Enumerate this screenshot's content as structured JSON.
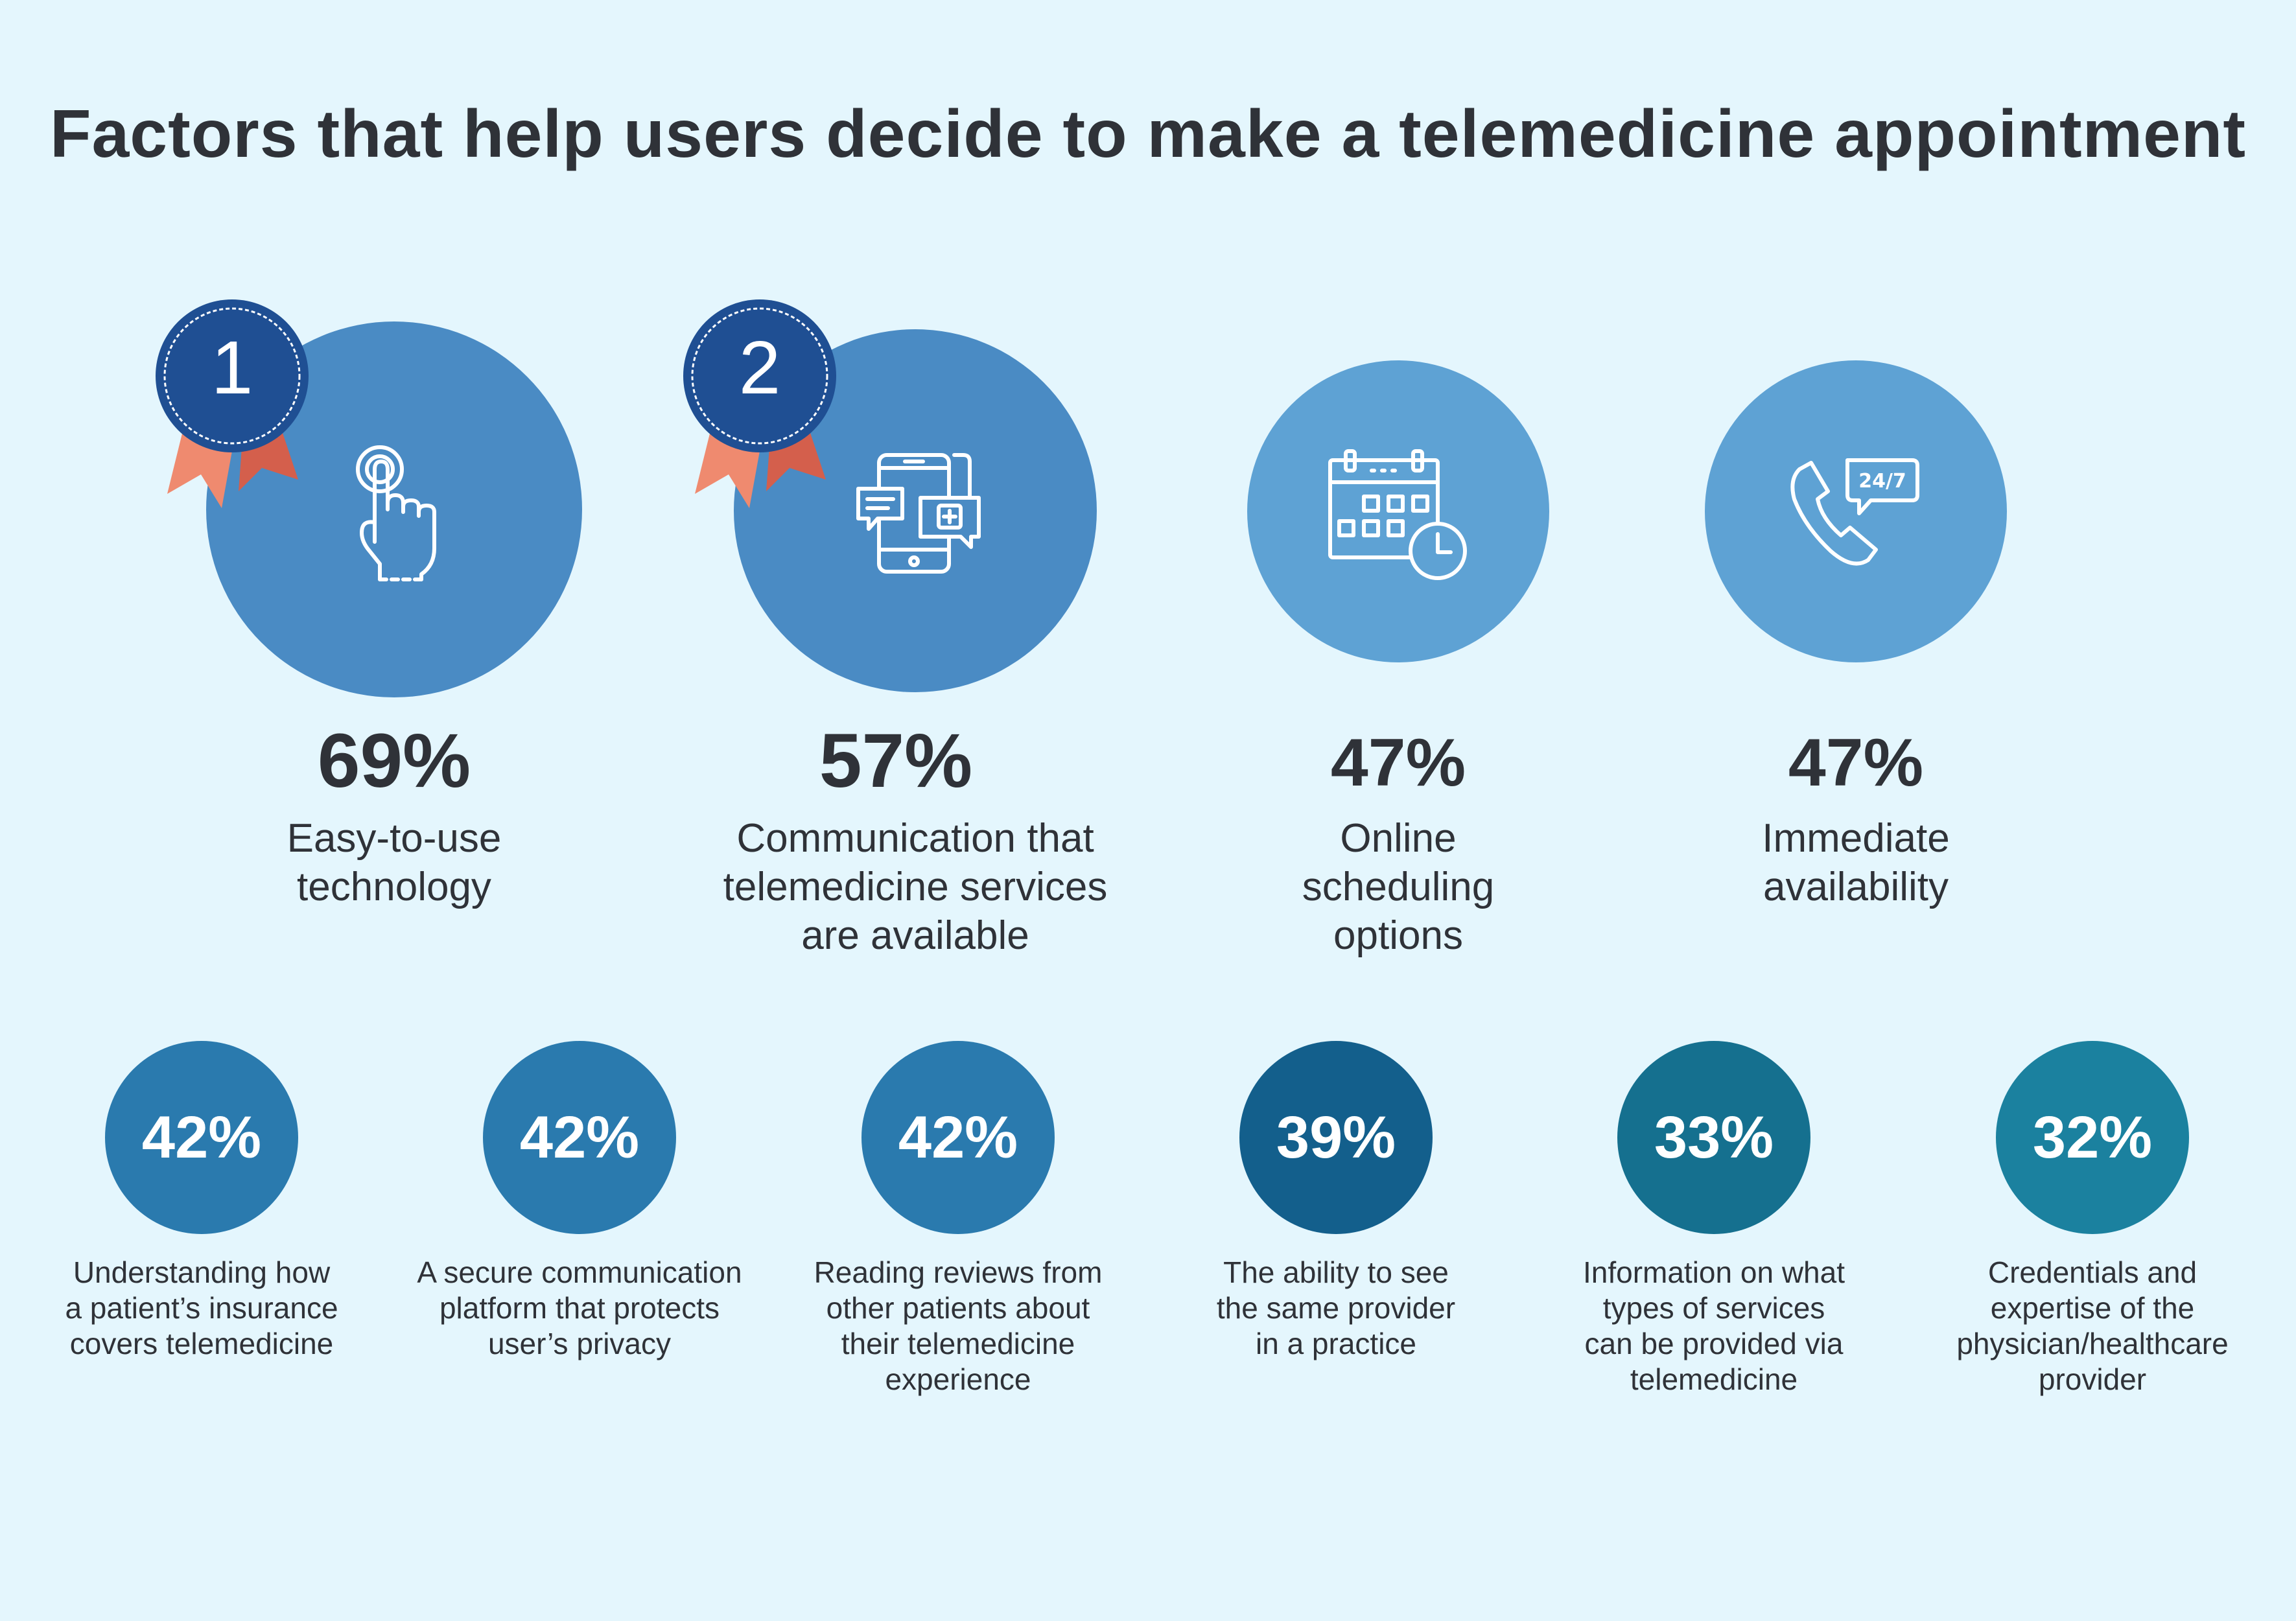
{
  "title": "Factors that help users decide to make a telemedicine appointment",
  "colors": {
    "background": "#e4f6fd",
    "top_rank_circle": "#4a8bc4",
    "top_other_circle": "#5ea2d4",
    "badge": "#1f4f93",
    "ribbon_light": "#ef8a6f",
    "ribbon_dark": "#d45f4c",
    "small_circles": [
      "#2a7aae",
      "#2a7aae",
      "#2a7aae",
      "#135f8c",
      "#15708f",
      "#1b819f"
    ]
  },
  "top_items": [
    {
      "rank": "1",
      "value_label": "69%",
      "label": "Easy-to-use\ntechnology",
      "icon": "touch-hand-icon"
    },
    {
      "rank": "2",
      "value_label": "57%",
      "label": "Communication that\ntelemedicine services\nare available",
      "icon": "mobile-chat-icon"
    },
    {
      "rank": "",
      "value_label": "47%",
      "label": "Online\nscheduling\noptions",
      "icon": "calendar-clock-icon"
    },
    {
      "rank": "",
      "value_label": "47%",
      "label": "Immediate\navailability",
      "icon": "phone-24-7-icon"
    }
  ],
  "bottom_items": [
    {
      "value_label": "42%",
      "label": "Understanding how\na patient’s insurance\ncovers  telemedicine"
    },
    {
      "value_label": "42%",
      "label": "A secure communication\nplatform that protects\nuser’s privacy"
    },
    {
      "value_label": "42%",
      "label": "Reading reviews from\nother patients about\ntheir telemedicine\nexperience"
    },
    {
      "value_label": "39%",
      "label": "The ability to see\nthe same provider\nin a practice"
    },
    {
      "value_label": "33%",
      "label": "Information on what\ntypes of services\ncan be provided via\ntelemedicine"
    },
    {
      "value_label": "32%",
      "label": "Credentials and\nexpertise of the\nphysician/healthcare\nprovider"
    }
  ],
  "chart_data": {
    "type": "bar",
    "title": "Factors that help users decide to make a telemedicine appointment",
    "categories": [
      "Easy-to-use technology",
      "Communication that telemedicine services are available",
      "Online scheduling options",
      "Immediate availability",
      "Understanding how a patient’s insurance covers  telemedicine",
      "A secure communication platform that protects user’s privacy",
      "Reading reviews from other patients about their telemedicine experience",
      "The ability to see the same provider in a practice",
      "Information on what types of services can be provided via telemedicine",
      "Credentials and expertise of the physician/healthcare provider"
    ],
    "values": [
      69,
      57,
      47,
      47,
      42,
      42,
      42,
      39,
      33,
      32
    ],
    "unit": "%"
  }
}
